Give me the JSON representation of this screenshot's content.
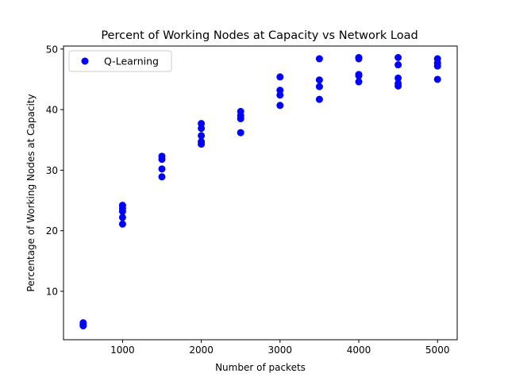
{
  "chart_data": {
    "type": "scatter",
    "title": "Percent of Working Nodes at Capacity vs Network Load",
    "xlabel": "Number of packets",
    "ylabel": "Percentage of Working Nodes at Capacity",
    "xlim": [
      250,
      5250
    ],
    "ylim": [
      2,
      50.5
    ],
    "xticks": [
      1000,
      2000,
      3000,
      4000,
      5000
    ],
    "yticks": [
      10,
      20,
      30,
      40,
      50
    ],
    "grid": false,
    "legend_position": "top-left",
    "series": [
      {
        "name": "Q-Learning",
        "color": "#0000ff",
        "points": [
          [
            500,
            4.3
          ],
          [
            500,
            4.5
          ],
          [
            500,
            4.8
          ],
          [
            1000,
            21.1
          ],
          [
            1000,
            22.2
          ],
          [
            1000,
            23.2
          ],
          [
            1000,
            23.7
          ],
          [
            1000,
            24.2
          ],
          [
            1500,
            28.9
          ],
          [
            1500,
            30.2
          ],
          [
            1500,
            31.8
          ],
          [
            1500,
            32.3
          ],
          [
            2000,
            34.3
          ],
          [
            2000,
            34.7
          ],
          [
            2000,
            35.7
          ],
          [
            2000,
            36.9
          ],
          [
            2000,
            37.7
          ],
          [
            2500,
            36.2
          ],
          [
            2500,
            38.5
          ],
          [
            2500,
            39.0
          ],
          [
            2500,
            39.7
          ],
          [
            3000,
            40.7
          ],
          [
            3000,
            42.4
          ],
          [
            3000,
            43.2
          ],
          [
            3000,
            45.4
          ],
          [
            3500,
            41.7
          ],
          [
            3500,
            43.8
          ],
          [
            3500,
            44.9
          ],
          [
            3500,
            48.4
          ],
          [
            4000,
            44.6
          ],
          [
            4000,
            45.6
          ],
          [
            4000,
            45.8
          ],
          [
            4000,
            48.4
          ],
          [
            4000,
            48.6
          ],
          [
            4500,
            43.9
          ],
          [
            4500,
            44.3
          ],
          [
            4500,
            45.2
          ],
          [
            4500,
            47.4
          ],
          [
            4500,
            48.6
          ],
          [
            5000,
            45.0
          ],
          [
            5000,
            47.2
          ],
          [
            5000,
            47.7
          ],
          [
            5000,
            48.4
          ]
        ]
      }
    ]
  }
}
